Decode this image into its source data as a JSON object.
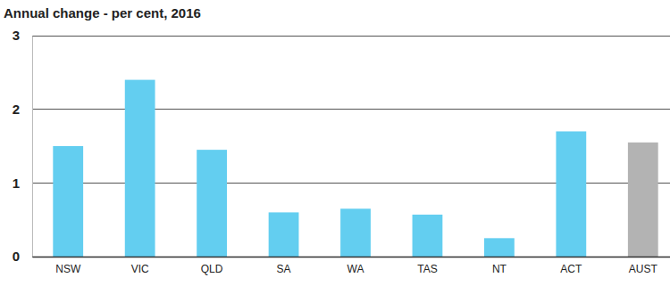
{
  "chart_data": {
    "type": "bar",
    "title": "Annual change - per cent, 2016",
    "categories": [
      "NSW",
      "VIC",
      "QLD",
      "SA",
      "WA",
      "TAS",
      "NT",
      "ACT",
      "AUST"
    ],
    "values": [
      1.5,
      2.4,
      1.45,
      0.6,
      0.65,
      0.57,
      0.25,
      1.7,
      1.55
    ],
    "colors": [
      "#63cef0",
      "#63cef0",
      "#63cef0",
      "#63cef0",
      "#63cef0",
      "#63cef0",
      "#63cef0",
      "#63cef0",
      "#b3b3b3"
    ],
    "ylim": [
      0,
      3
    ],
    "yticks": [
      0,
      1,
      2,
      3
    ],
    "grid": true
  }
}
